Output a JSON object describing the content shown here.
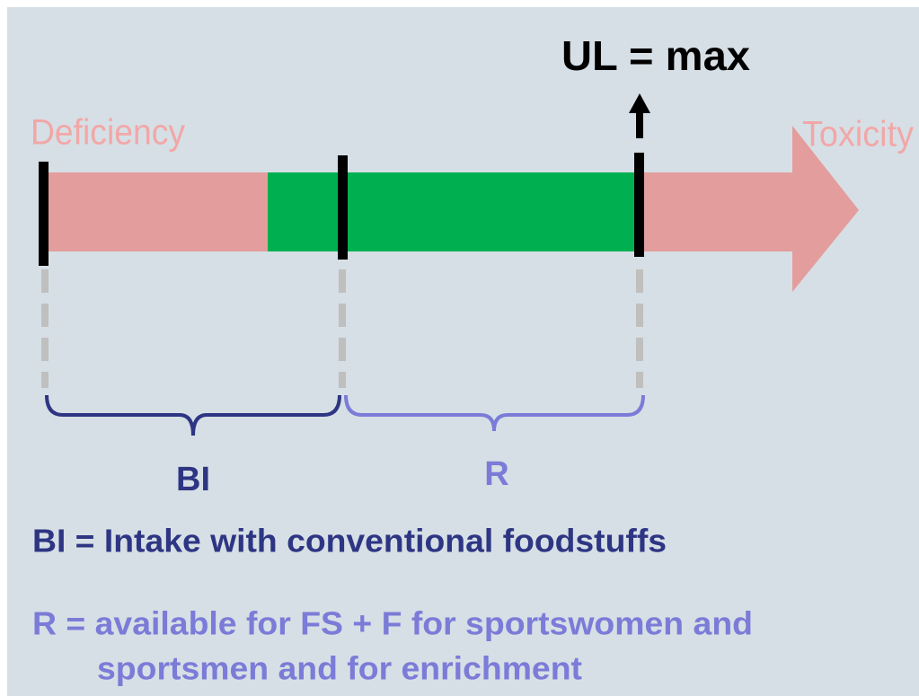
{
  "header": {
    "title": "UL = max"
  },
  "labels": {
    "left": "Deficiency",
    "right": "Toxicity",
    "brace_left": "BI",
    "brace_right": "R"
  },
  "legend": {
    "bi": "BI = Intake with conventional foodstuffs",
    "r_line1": "R = available for FS + F for sportswomen and",
    "r_line2": "sportsmen and for enrichment"
  }
}
